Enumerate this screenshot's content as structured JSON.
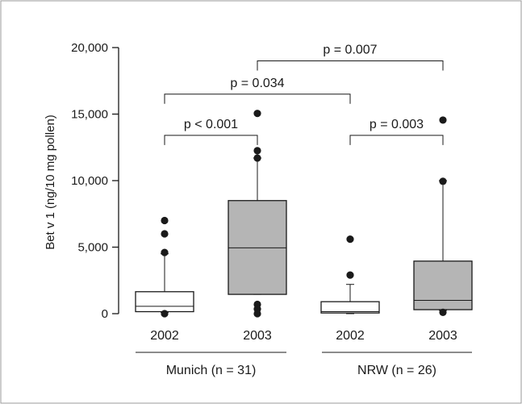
{
  "chart_data": {
    "type": "box",
    "ylabel": "Bet v 1 (ng/10 mg pollen)",
    "ylim": [
      0,
      20000
    ],
    "yticks": [
      {
        "value": 0,
        "label": "0"
      },
      {
        "value": 5000,
        "label": "5,000"
      },
      {
        "value": 10000,
        "label": "10,000"
      },
      {
        "value": 15000,
        "label": "15,000"
      },
      {
        "value": 20000,
        "label": "20,000"
      }
    ],
    "boxes": [
      {
        "category": "2002",
        "group": "Munich (n = 31)",
        "fill": "#ffffff",
        "whisker_low": 100,
        "q1": 150,
        "median": 550,
        "q3": 1650,
        "whisker_high": 4500,
        "outliers": [
          7000,
          6000,
          4600,
          0
        ]
      },
      {
        "category": "2003",
        "group": "Munich (n = 31)",
        "fill": "#b5b5b5",
        "whisker_low": 1450,
        "q1": 1450,
        "median": 4950,
        "q3": 8500,
        "whisker_high": 11700,
        "outliers": [
          15050,
          12250,
          11700,
          700,
          350,
          0
        ]
      },
      {
        "category": "2002",
        "group": "NRW (n = 26)",
        "fill": "#ffffff",
        "whisker_low": 0,
        "q1": 50,
        "median": 150,
        "q3": 900,
        "whisker_high": 2200,
        "outliers": [
          5600,
          2900
        ]
      },
      {
        "category": "2003",
        "group": "NRW (n = 26)",
        "fill": "#b5b5b5",
        "whisker_low": 250,
        "q1": 300,
        "median": 1000,
        "q3": 3950,
        "whisker_high": 10000,
        "outliers": [
          14550,
          9950,
          100
        ]
      }
    ],
    "groups": [
      "Munich (n = 31)",
      "NRW (n = 26)"
    ],
    "comparisons": [
      {
        "from": 0,
        "to": 1,
        "label": "p < 0.001",
        "level": 13400
      },
      {
        "from": 2,
        "to": 3,
        "label": "p = 0.003",
        "level": 13400
      },
      {
        "from": 0,
        "to": 2,
        "label": "p = 0.034",
        "level": 16500
      },
      {
        "from": 1,
        "to": 3,
        "label": "p = 0.007",
        "level": 19000
      }
    ]
  }
}
